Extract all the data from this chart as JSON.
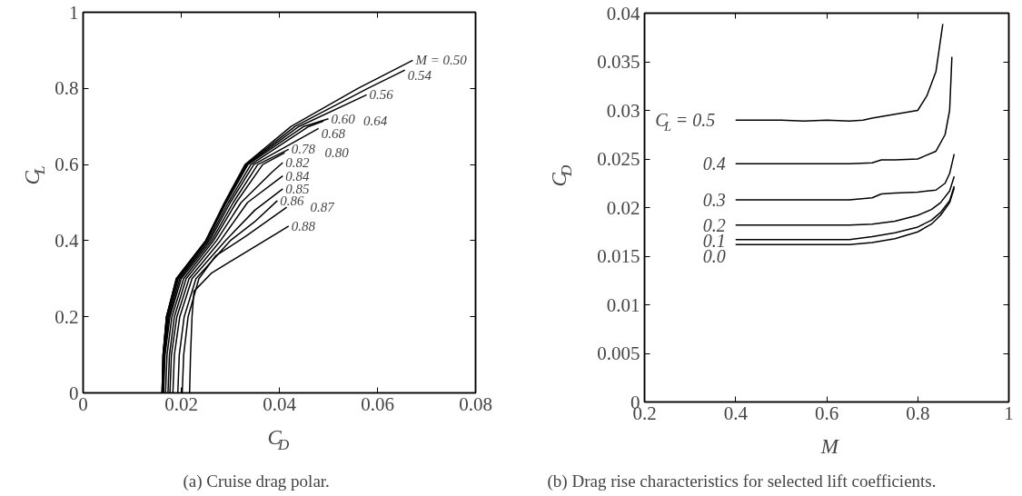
{
  "chart_data": [
    {
      "type": "line",
      "xlabel": "C$_{D}$",
      "ylabel": "C$_{L}$",
      "xlim": [
        0,
        0.08
      ],
      "xticks": [
        0,
        0.02,
        0.04,
        0.06,
        0.08
      ],
      "ylim": [
        0,
        1
      ],
      "yticks": [
        0,
        0.2,
        0.4,
        0.6,
        0.8,
        1
      ],
      "grid": false,
      "legend": false,
      "marker": "none",
      "line_style": "solid",
      "series": [
        {
          "name": "M = 0.50",
          "color": "#000000",
          "x": [
            0.0161,
            0.0163,
            0.017,
            0.019,
            0.025,
            0.0288,
            0.033,
            0.0424,
            0.056,
            0.0672
          ],
          "values": [
            0,
            0.1,
            0.2,
            0.3,
            0.4,
            0.5,
            0.6,
            0.7,
            0.8,
            0.874
          ]
        },
        {
          "name": "0.54",
          "color": "#000000",
          "x": [
            0.0161,
            0.0163,
            0.017,
            0.019,
            0.025,
            0.0289,
            0.0332,
            0.0432,
            0.058,
            0.0656
          ],
          "values": [
            0,
            0.1,
            0.2,
            0.3,
            0.4,
            0.5,
            0.6,
            0.7,
            0.8,
            0.848
          ]
        },
        {
          "name": "0.56",
          "color": "#000000",
          "x": [
            0.0161,
            0.0163,
            0.017,
            0.0191,
            0.0251,
            0.029,
            0.0334,
            0.044,
            0.0578
          ],
          "values": [
            0,
            0.1,
            0.2,
            0.3,
            0.4,
            0.5,
            0.6,
            0.7,
            0.783
          ]
        },
        {
          "name": "0.60",
          "color": "#000000",
          "x": [
            0.0162,
            0.0164,
            0.0171,
            0.0192,
            0.0252,
            0.0292,
            0.0336,
            0.045,
            0.05
          ],
          "values": [
            0,
            0.1,
            0.2,
            0.3,
            0.4,
            0.5,
            0.6,
            0.7,
            0.72
          ]
        },
        {
          "name": "0.64",
          "color": "#000000",
          "x": [
            0.0163,
            0.0165,
            0.0173,
            0.0194,
            0.0255,
            0.0296,
            0.0342,
            0.046,
            0.049
          ],
          "values": [
            0,
            0.1,
            0.2,
            0.3,
            0.4,
            0.5,
            0.6,
            0.7,
            0.714
          ]
        },
        {
          "name": "0.68",
          "color": "#000000",
          "x": [
            0.0163,
            0.0166,
            0.0175,
            0.0197,
            0.0258,
            0.03,
            0.0348,
            0.048
          ],
          "values": [
            0,
            0.1,
            0.2,
            0.3,
            0.4,
            0.5,
            0.6,
            0.695
          ]
        },
        {
          "name": "0.78",
          "color": "#000000",
          "x": [
            0.0164,
            0.0167,
            0.0177,
            0.02,
            0.0262,
            0.0306,
            0.0356,
            0.0419
          ],
          "values": [
            0,
            0.1,
            0.2,
            0.3,
            0.4,
            0.5,
            0.6,
            0.64
          ]
        },
        {
          "name": "0.80",
          "color": "#000000",
          "x": [
            0.0168,
            0.0171,
            0.0181,
            0.0205,
            0.0266,
            0.0312,
            0.0366,
            0.0411
          ],
          "values": [
            0,
            0.1,
            0.2,
            0.3,
            0.4,
            0.5,
            0.6,
            0.631
          ]
        },
        {
          "name": "0.82",
          "color": "#000000",
          "x": [
            0.0173,
            0.0176,
            0.0186,
            0.021,
            0.0272,
            0.0322,
            0.0385,
            0.0407
          ],
          "values": [
            0,
            0.1,
            0.2,
            0.3,
            0.4,
            0.5,
            0.58,
            0.605
          ]
        },
        {
          "name": "0.84",
          "color": "#000000",
          "x": [
            0.0177,
            0.018,
            0.0191,
            0.0216,
            0.028,
            0.0335,
            0.0407
          ],
          "values": [
            0,
            0.1,
            0.2,
            0.3,
            0.4,
            0.5,
            0.57
          ]
        },
        {
          "name": "0.85",
          "color": "#000000",
          "x": [
            0.0183,
            0.0186,
            0.0197,
            0.0222,
            0.029,
            0.035,
            0.0407
          ],
          "values": [
            0,
            0.1,
            0.2,
            0.3,
            0.4,
            0.48,
            0.536
          ]
        },
        {
          "name": "0.86",
          "color": "#000000",
          "x": [
            0.0193,
            0.0196,
            0.0206,
            0.023,
            0.03,
            0.035,
            0.0396
          ],
          "values": [
            0,
            0.1,
            0.2,
            0.3,
            0.4,
            0.45,
            0.505
          ]
        },
        {
          "name": "0.87",
          "color": "#000000",
          "x": [
            0.0202,
            0.0205,
            0.0214,
            0.0236,
            0.027,
            0.033,
            0.0415
          ],
          "values": [
            0,
            0.1,
            0.2,
            0.3,
            0.36,
            0.41,
            0.488
          ]
        },
        {
          "name": "0.88",
          "color": "#000000",
          "x": [
            0.0217,
            0.0219,
            0.0222,
            0.0226,
            0.0261,
            0.03,
            0.0419
          ],
          "values": [
            0,
            0.1,
            0.2,
            0.267,
            0.314,
            0.345,
            0.438
          ]
        }
      ],
      "annotations": [
        "(a)  Cruise drag polar."
      ]
    },
    {
      "type": "line",
      "xlabel": "M",
      "ylabel": "C$_{D}$",
      "xlim": [
        0.2,
        1
      ],
      "xticks": [
        0.2,
        0.4,
        0.6,
        0.8,
        1
      ],
      "ylim": [
        0,
        0.04
      ],
      "yticks": [
        0,
        0.005,
        0.01,
        0.015,
        0.02,
        0.025,
        0.03,
        0.035,
        0.04
      ],
      "grid": false,
      "legend": false,
      "marker": "none",
      "line_style": "solid",
      "series": [
        {
          "name": "C$_{L}$ = 0.5",
          "color": "#000000",
          "x": [
            0.4,
            0.5,
            0.55,
            0.6,
            0.65,
            0.68,
            0.7,
            0.75,
            0.8,
            0.82,
            0.84,
            0.855
          ],
          "values": [
            0.029,
            0.029,
            0.0289,
            0.029,
            0.0289,
            0.029,
            0.0292,
            0.0296,
            0.03,
            0.0315,
            0.034,
            0.0389
          ]
        },
        {
          "name": "0.4",
          "color": "#000000",
          "x": [
            0.4,
            0.5,
            0.6,
            0.65,
            0.7,
            0.72,
            0.75,
            0.8,
            0.84,
            0.86,
            0.87,
            0.875
          ],
          "values": [
            0.0245,
            0.0245,
            0.0245,
            0.0245,
            0.0246,
            0.0249,
            0.0249,
            0.025,
            0.0258,
            0.0275,
            0.03,
            0.0355
          ]
        },
        {
          "name": "0.3",
          "color": "#000000",
          "x": [
            0.4,
            0.5,
            0.6,
            0.65,
            0.7,
            0.72,
            0.75,
            0.8,
            0.84,
            0.86,
            0.87,
            0.88
          ],
          "values": [
            0.0208,
            0.0208,
            0.0208,
            0.0208,
            0.021,
            0.0214,
            0.0215,
            0.0216,
            0.0218,
            0.0225,
            0.0235,
            0.0255
          ]
        },
        {
          "name": "0.2",
          "color": "#000000",
          "x": [
            0.4,
            0.5,
            0.6,
            0.65,
            0.7,
            0.75,
            0.8,
            0.83,
            0.85,
            0.87,
            0.88
          ],
          "values": [
            0.0182,
            0.0182,
            0.0182,
            0.0182,
            0.0183,
            0.0186,
            0.0192,
            0.0198,
            0.0205,
            0.0217,
            0.0232
          ]
        },
        {
          "name": "0.1",
          "color": "#000000",
          "x": [
            0.4,
            0.5,
            0.6,
            0.65,
            0.7,
            0.75,
            0.8,
            0.83,
            0.85,
            0.87,
            0.88
          ],
          "values": [
            0.0167,
            0.0167,
            0.0167,
            0.0167,
            0.017,
            0.0174,
            0.018,
            0.0187,
            0.0195,
            0.0207,
            0.0222
          ]
        },
        {
          "name": "0.0",
          "color": "#000000",
          "x": [
            0.4,
            0.5,
            0.6,
            0.65,
            0.7,
            0.75,
            0.8,
            0.83,
            0.85,
            0.87,
            0.88
          ],
          "values": [
            0.0162,
            0.0162,
            0.0162,
            0.0162,
            0.0164,
            0.0168,
            0.0175,
            0.0183,
            0.0192,
            0.0205,
            0.022
          ]
        }
      ],
      "annotations": [
        "(b)  Drag rise characteristics for selected lift coefficients."
      ]
    }
  ]
}
